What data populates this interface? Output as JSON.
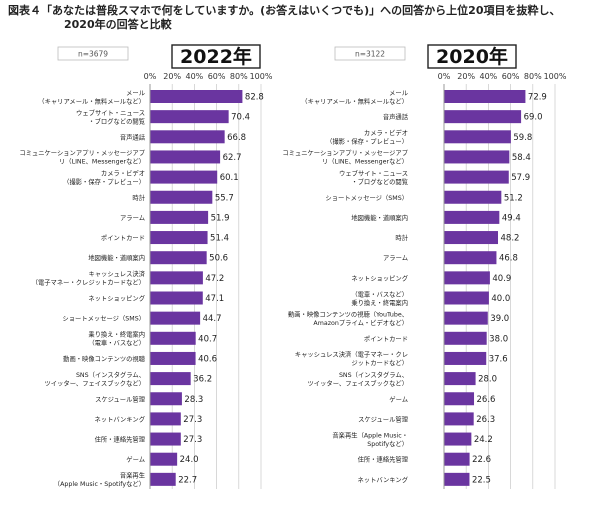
{
  "title": {
    "line1": "図表４「あなたは普段スマホで何をしていますか。(お答えはいくつでも)」への回答から上位20項目を抜粋し、",
    "line2": "2020年の回答と比較"
  },
  "colors": {
    "bar": "#6a35a0",
    "grid": "#c8c8c8",
    "axis": "#999999"
  },
  "chart_data": [
    {
      "type": "bar",
      "orientation": "horizontal",
      "title": "2022年",
      "n_label": "n=3679",
      "xlim": [
        0,
        100
      ],
      "xticks": [
        "0%",
        "20%",
        "40%",
        "60%",
        "80%",
        "100%"
      ],
      "categories": [
        [
          "メール",
          "（キャリアメール・無料メールなど）"
        ],
        [
          "ウェブサイト・ニュース",
          "・ブログなどの閲覧"
        ],
        [
          "音声通話"
        ],
        [
          "コミュニケーションアプリ・メッセージアプ",
          "リ（LINE、Messengerなど）"
        ],
        [
          "カメラ・ビデオ",
          "（撮影・保存・プレビュー）"
        ],
        [
          "時計"
        ],
        [
          "アラーム"
        ],
        [
          "ポイントカード"
        ],
        [
          "地図機能・道順案内"
        ],
        [
          "キャッシュレス決済",
          "（電子マネー・クレジットカードなど）"
        ],
        [
          "ネットショッピング"
        ],
        [
          "ショートメッセージ（SMS）"
        ],
        [
          "乗り換え・終電案内",
          "（電車・バスなど）"
        ],
        [
          "動画・映像コンテンツの視聴"
        ],
        [
          "SNS（インスタグラム、",
          "ツイッター、フェイスブックなど）"
        ],
        [
          "スケジュール管理"
        ],
        [
          "ネットバンキング"
        ],
        [
          "住所・連絡先管理"
        ],
        [
          "ゲーム"
        ],
        [
          "音楽再生",
          "（Apple Music・Spotifyなど）"
        ]
      ],
      "values": [
        82.8,
        70.4,
        66.8,
        62.7,
        60.1,
        55.7,
        51.9,
        51.4,
        50.6,
        47.2,
        47.1,
        44.7,
        40.7,
        40.6,
        36.2,
        28.3,
        27.3,
        27.3,
        24.0,
        22.7
      ],
      "value_labels": [
        "82.8",
        "70.4",
        "66.8",
        "62.7",
        "60.1",
        "55.7",
        "51.9",
        "51.4",
        "50.6",
        "47.2",
        "47.1",
        "44.7",
        "40.7",
        "40.6",
        "36.2",
        "28.3",
        "27.3",
        "27.3",
        "24.0",
        "22.7"
      ]
    },
    {
      "type": "bar",
      "orientation": "horizontal",
      "title": "2020年",
      "n_label": "n=3122",
      "xlim": [
        0,
        100
      ],
      "xticks": [
        "0%",
        "20%",
        "40%",
        "60%",
        "80%",
        "100%"
      ],
      "categories": [
        [
          "メール",
          "（キャリアメール・無料メールなど）"
        ],
        [
          "音声通話"
        ],
        [
          "カメラ・ビデオ",
          "（撮影・保存・プレビュー）"
        ],
        [
          "コミュニケーションアプリ・メッセージアプ",
          "リ（LINE、Messengerなど）"
        ],
        [
          "ウェブサイト・ニュース",
          "・ブログなどの閲覧"
        ],
        [
          "ショートメッセージ（SMS）"
        ],
        [
          "地図機能・道順案内"
        ],
        [
          "時計"
        ],
        [
          "アラーム"
        ],
        [
          "ネットショッピング"
        ],
        [
          "（電車・バスなど）",
          "乗り換え・終電案内"
        ],
        [
          "動画・映像コンテンツの視聴（YouTube、",
          "Amazonプライム・ビデオなど）"
        ],
        [
          "ポイントカード"
        ],
        [
          "キャッシュレス決済（電子マネー・クレ",
          "ジットカードなど）"
        ],
        [
          "SNS（インスタグラム、",
          "ツイッター、フェイスブックなど）"
        ],
        [
          "ゲーム"
        ],
        [
          "スケジュール管理"
        ],
        [
          "音楽再生（Apple Music・",
          "Spotifyなど）"
        ],
        [
          "住所・連絡先管理"
        ],
        [
          "ネットバンキング"
        ]
      ],
      "values": [
        72.9,
        69.0,
        59.8,
        58.4,
        57.9,
        51.2,
        49.4,
        48.2,
        46.8,
        40.9,
        40.0,
        39.0,
        38.0,
        37.6,
        28.0,
        26.6,
        26.3,
        24.2,
        22.6,
        22.5
      ],
      "value_labels": [
        "72.9",
        "69.0",
        "59.8",
        "58.4",
        "57.9",
        "51.2",
        "49.4",
        "48.2",
        "46.8",
        "40.9",
        "40.0",
        "39.0",
        "38.0",
        "37.6",
        "28.0",
        "26.6",
        "26.3",
        "24.2",
        "22.6",
        "22.5"
      ]
    }
  ]
}
